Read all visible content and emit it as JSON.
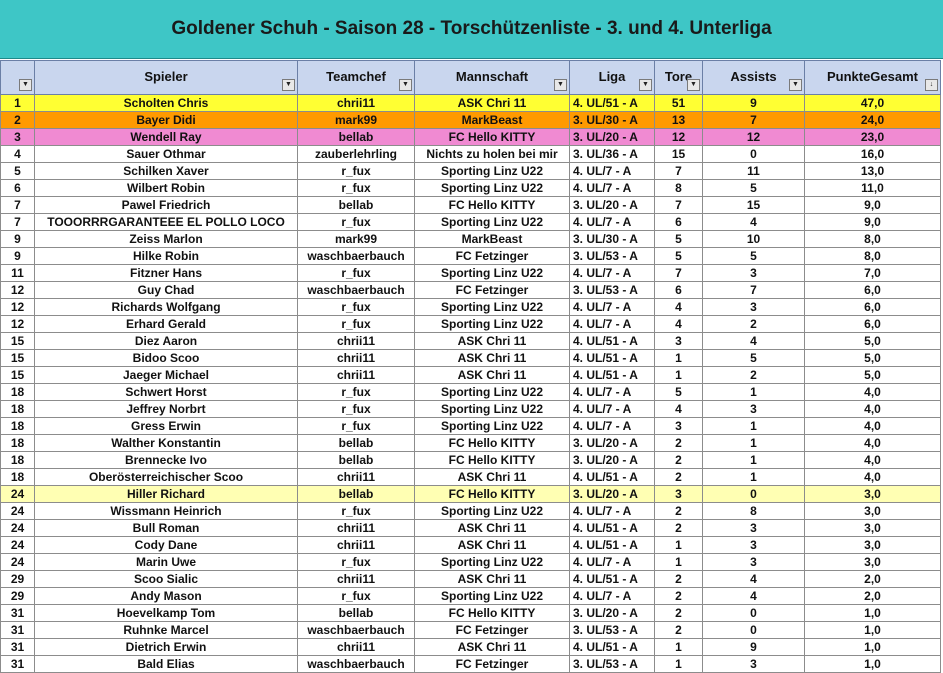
{
  "title": "Goldener Schuh - Saison 28 - Torschützenliste - 3. und 4. Unterliga",
  "headers": {
    "rank": "",
    "player": "Spieler",
    "manager": "Teamchef",
    "team": "Mannschaft",
    "league": "Liga",
    "goals": "Tore",
    "assists": "Assists",
    "points": "PunkteGesamt"
  },
  "highlight_colors": {
    "gold": "#ffff33",
    "silver": "#ff9a00",
    "bronze": "#f08ad2",
    "selected": "#ffffb3"
  },
  "rows": [
    {
      "rank": "1",
      "player": "Scholten Chris",
      "manager": "chrii11",
      "team": "ASK Chri 11",
      "league": "4. UL/51 - A",
      "goals": "51",
      "assists": "9",
      "points": "47,0",
      "style": "gold"
    },
    {
      "rank": "2",
      "player": "Bayer Didi",
      "manager": "mark99",
      "team": "MarkBeast",
      "league": "3. UL/30 - A",
      "goals": "13",
      "assists": "7",
      "points": "24,0",
      "style": "silver"
    },
    {
      "rank": "3",
      "player": "Wendell Ray",
      "manager": "bellab",
      "team": "FC Hello KITTY",
      "league": "3. UL/20 - A",
      "goals": "12",
      "assists": "12",
      "points": "23,0",
      "style": "bronze"
    },
    {
      "rank": "4",
      "player": "Sauer Othmar",
      "manager": "zauberlehrling",
      "team": "Nichts zu holen bei mir",
      "league": "3. UL/36 - A",
      "goals": "15",
      "assists": "0",
      "points": "16,0",
      "style": ""
    },
    {
      "rank": "5",
      "player": "Schilken Xaver",
      "manager": "r_fux",
      "team": "Sporting Linz U22",
      "league": "4. UL/7 - A",
      "goals": "7",
      "assists": "11",
      "points": "13,0",
      "style": ""
    },
    {
      "rank": "6",
      "player": "Wilbert Robin",
      "manager": "r_fux",
      "team": "Sporting Linz U22",
      "league": "4. UL/7 - A",
      "goals": "8",
      "assists": "5",
      "points": "11,0",
      "style": ""
    },
    {
      "rank": "7",
      "player": "Pawel Friedrich",
      "manager": "bellab",
      "team": "FC Hello KITTY",
      "league": "3. UL/20 - A",
      "goals": "7",
      "assists": "15",
      "points": "9,0",
      "style": ""
    },
    {
      "rank": "7",
      "player": "TOOORRRGARANTEEE EL POLLO LOCO",
      "manager": "r_fux",
      "team": "Sporting Linz U22",
      "league": "4. UL/7 - A",
      "goals": "6",
      "assists": "4",
      "points": "9,0",
      "style": ""
    },
    {
      "rank": "9",
      "player": "Zeiss Marlon",
      "manager": "mark99",
      "team": "MarkBeast",
      "league": "3. UL/30 - A",
      "goals": "5",
      "assists": "10",
      "points": "8,0",
      "style": ""
    },
    {
      "rank": "9",
      "player": "Hilke Robin",
      "manager": "waschbaerbauch",
      "team": "FC Fetzinger",
      "league": "3. UL/53 - A",
      "goals": "5",
      "assists": "5",
      "points": "8,0",
      "style": ""
    },
    {
      "rank": "11",
      "player": "Fitzner Hans",
      "manager": "r_fux",
      "team": "Sporting Linz U22",
      "league": "4. UL/7 - A",
      "goals": "7",
      "assists": "3",
      "points": "7,0",
      "style": ""
    },
    {
      "rank": "12",
      "player": "Guy Chad",
      "manager": "waschbaerbauch",
      "team": "FC Fetzinger",
      "league": "3. UL/53 - A",
      "goals": "6",
      "assists": "7",
      "points": "6,0",
      "style": ""
    },
    {
      "rank": "12",
      "player": "Richards Wolfgang",
      "manager": "r_fux",
      "team": "Sporting Linz U22",
      "league": "4. UL/7 - A",
      "goals": "4",
      "assists": "3",
      "points": "6,0",
      "style": ""
    },
    {
      "rank": "12",
      "player": "Erhard Gerald",
      "manager": "r_fux",
      "team": "Sporting Linz U22",
      "league": "4. UL/7 - A",
      "goals": "4",
      "assists": "2",
      "points": "6,0",
      "style": ""
    },
    {
      "rank": "15",
      "player": "Diez Aaron",
      "manager": "chrii11",
      "team": "ASK Chri 11",
      "league": "4. UL/51 - A",
      "goals": "3",
      "assists": "4",
      "points": "5,0",
      "style": ""
    },
    {
      "rank": "15",
      "player": "Bidoo Scoo",
      "manager": "chrii11",
      "team": "ASK Chri 11",
      "league": "4. UL/51 - A",
      "goals": "1",
      "assists": "5",
      "points": "5,0",
      "style": ""
    },
    {
      "rank": "15",
      "player": "Jaeger Michael",
      "manager": "chrii11",
      "team": "ASK Chri 11",
      "league": "4. UL/51 - A",
      "goals": "1",
      "assists": "2",
      "points": "5,0",
      "style": ""
    },
    {
      "rank": "18",
      "player": "Schwert Horst",
      "manager": "r_fux",
      "team": "Sporting Linz U22",
      "league": "4. UL/7 - A",
      "goals": "5",
      "assists": "1",
      "points": "4,0",
      "style": ""
    },
    {
      "rank": "18",
      "player": "Jeffrey Norbrt",
      "manager": "r_fux",
      "team": "Sporting Linz U22",
      "league": "4. UL/7 - A",
      "goals": "4",
      "assists": "3",
      "points": "4,0",
      "style": ""
    },
    {
      "rank": "18",
      "player": "Gress Erwin",
      "manager": "r_fux",
      "team": "Sporting Linz U22",
      "league": "4. UL/7 - A",
      "goals": "3",
      "assists": "1",
      "points": "4,0",
      "style": ""
    },
    {
      "rank": "18",
      "player": "Walther Konstantin",
      "manager": "bellab",
      "team": "FC Hello KITTY",
      "league": "3. UL/20 - A",
      "goals": "2",
      "assists": "1",
      "points": "4,0",
      "style": ""
    },
    {
      "rank": "18",
      "player": "Brennecke Ivo",
      "manager": "bellab",
      "team": "FC Hello KITTY",
      "league": "3. UL/20 - A",
      "goals": "2",
      "assists": "1",
      "points": "4,0",
      "style": ""
    },
    {
      "rank": "18",
      "player": "Oberösterreichischer Scoo",
      "manager": "chrii11",
      "team": "ASK Chri 11",
      "league": "4. UL/51 - A",
      "goals": "2",
      "assists": "1",
      "points": "4,0",
      "style": ""
    },
    {
      "rank": "24",
      "player": "Hiller Richard",
      "manager": "bellab",
      "team": "FC Hello KITTY",
      "league": "3. UL/20 - A",
      "goals": "3",
      "assists": "0",
      "points": "3,0",
      "style": "hl"
    },
    {
      "rank": "24",
      "player": "Wissmann Heinrich",
      "manager": "r_fux",
      "team": "Sporting Linz U22",
      "league": "4. UL/7 - A",
      "goals": "2",
      "assists": "8",
      "points": "3,0",
      "style": ""
    },
    {
      "rank": "24",
      "player": "Bull Roman",
      "manager": "chrii11",
      "team": "ASK Chri 11",
      "league": "4. UL/51 - A",
      "goals": "2",
      "assists": "3",
      "points": "3,0",
      "style": ""
    },
    {
      "rank": "24",
      "player": "Cody Dane",
      "manager": "chrii11",
      "team": "ASK Chri 11",
      "league": "4. UL/51 - A",
      "goals": "1",
      "assists": "3",
      "points": "3,0",
      "style": ""
    },
    {
      "rank": "24",
      "player": "Marin Uwe",
      "manager": "r_fux",
      "team": "Sporting Linz U22",
      "league": "4. UL/7 - A",
      "goals": "1",
      "assists": "3",
      "points": "3,0",
      "style": ""
    },
    {
      "rank": "29",
      "player": "Scoo Sialic",
      "manager": "chrii11",
      "team": "ASK Chri 11",
      "league": "4. UL/51 - A",
      "goals": "2",
      "assists": "4",
      "points": "2,0",
      "style": ""
    },
    {
      "rank": "29",
      "player": "Andy Mason",
      "manager": "r_fux",
      "team": "Sporting Linz U22",
      "league": "4. UL/7 - A",
      "goals": "2",
      "assists": "4",
      "points": "2,0",
      "style": ""
    },
    {
      "rank": "31",
      "player": "Hoevelkamp Tom",
      "manager": "bellab",
      "team": "FC Hello KITTY",
      "league": "3. UL/20 - A",
      "goals": "2",
      "assists": "0",
      "points": "1,0",
      "style": ""
    },
    {
      "rank": "31",
      "player": "Ruhnke Marcel",
      "manager": "waschbaerbauch",
      "team": "FC Fetzinger",
      "league": "3. UL/53 - A",
      "goals": "2",
      "assists": "0",
      "points": "1,0",
      "style": ""
    },
    {
      "rank": "31",
      "player": "Dietrich Erwin",
      "manager": "chrii11",
      "team": "ASK Chri 11",
      "league": "4. UL/51 - A",
      "goals": "1",
      "assists": "9",
      "points": "1,0",
      "style": ""
    },
    {
      "rank": "31",
      "player": "Bald Elias",
      "manager": "waschbaerbauch",
      "team": "FC Fetzinger",
      "league": "3. UL/53 - A",
      "goals": "1",
      "assists": "3",
      "points": "1,0",
      "style": ""
    }
  ]
}
